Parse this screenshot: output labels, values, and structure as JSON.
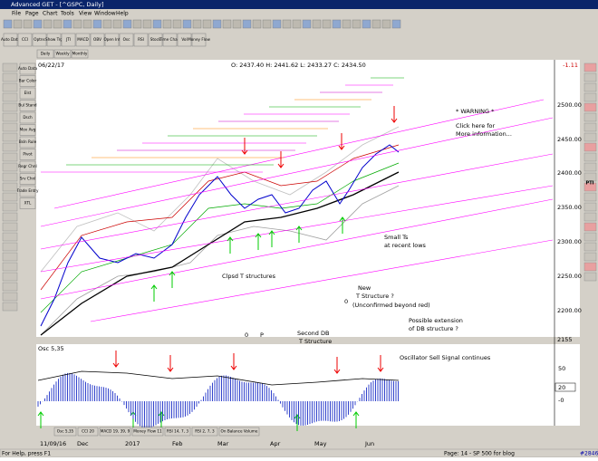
{
  "window": {
    "title": "Advanced GET - [^GSPC, Daily]"
  },
  "menu": [
    "File",
    "Page",
    "Chart",
    "Tools",
    "View",
    "Window",
    "Help"
  ],
  "toolbar": [
    "Auto Data",
    "CCI",
    "Optns",
    "Show Trg",
    "JTI",
    "MACD",
    "OBV",
    "Open Int",
    "Osc",
    "RSI",
    "Stock",
    "Time Chart",
    "Vol",
    "Money Flow"
  ],
  "left_toolbar": [
    "Auto Data",
    "Bar Color",
    "Elst",
    "Bul Stand",
    "Dsch",
    "Mov Avg",
    "Bsln Rule",
    "Pivot",
    "Regr Chnl",
    "Srv Chnl",
    "Trade Entry",
    "XTL"
  ],
  "right_toolbar": [
    "PTI"
  ],
  "period_tabs": [
    "Daily",
    "Weekly",
    "Monthly"
  ],
  "chart": {
    "date": "06/22/17",
    "ohlc": "O: 2437.40  H: 2441.62  L: 2433.27  C: 2434.50",
    "change": "-1.11",
    "price_ticks": [
      "2500.00",
      "2450.00",
      "2400.00",
      "2350.00",
      "2300.00",
      "2250.00",
      "2200.00",
      "2155"
    ],
    "annotations": [
      "* WARNING *",
      "Click here for",
      "More information...",
      "Small Ts",
      "at recent lows",
      "Clpsd T structures",
      "New",
      "T Structure ?",
      "(Unconfirmed beyond red)",
      "0",
      "Possible extension",
      "of DB structure ?",
      "Second DB",
      "T Structure",
      "0",
      "P"
    ]
  },
  "oscillator": {
    "label": "Osc 5,35",
    "ticks": [
      "50",
      "20",
      "-0"
    ],
    "annotation": "Oscillator Sell Signal continues"
  },
  "indicator_tabs": [
    "Osc 5,35",
    "CCI 20",
    "MACD 19, 39, 9",
    "Money Flow 11",
    "RSI 14, 7, 3",
    "RSI 2, 7, 3",
    "On Balance Volume"
  ],
  "dates": [
    "11/09/16",
    "Dec",
    "2017",
    "Feb",
    "Mar",
    "Apr",
    "May",
    "Jun"
  ],
  "status": {
    "help": "For Help, press F1",
    "page": "Page: 14 - SP 500 for blog",
    "id": "#2846"
  }
}
